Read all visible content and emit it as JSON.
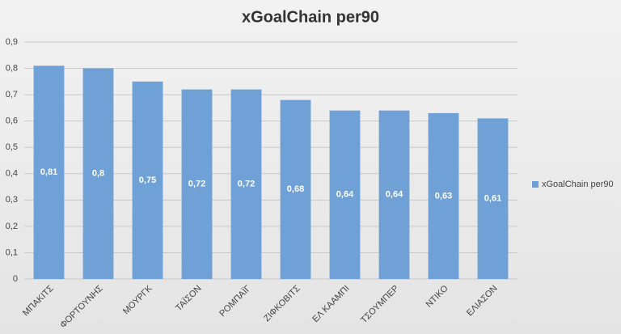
{
  "chart_data": {
    "type": "bar",
    "title": "xGoalChain per90",
    "categories": [
      "ΜΠΑΚΙΤΣ",
      "ΦΟΡΤΟΥΝΗΣ",
      "ΜΟΥΡΓΚ",
      "ΤΑΪΣΟΝ",
      "ΡΟΜΠΑΪΓ",
      "ΖΙΦΚΟΒΙΤΣ",
      "ΕΛ ΚΑΑΜΠΙ",
      "ΤΣΟΥΜΠΕΡ",
      "ΝΤΙΚΟ",
      "ΕΛΙΑΣΟΝ"
    ],
    "series": [
      {
        "name": "xGoalChain per90",
        "color": "#6fa0d6",
        "values": [
          0.81,
          0.8,
          0.75,
          0.72,
          0.72,
          0.68,
          0.64,
          0.64,
          0.63,
          0.61
        ],
        "value_labels": [
          "0,81",
          "0,8",
          "0,75",
          "0,72",
          "0,72",
          "0,68",
          "0,64",
          "0,64",
          "0,63",
          "0,61"
        ]
      }
    ],
    "ylim": [
      0,
      0.9
    ],
    "yticks": [
      0,
      {
        "value": 0.1,
        "label": "0,1"
      },
      {
        "value": 0.2,
        "label": "0,2"
      },
      {
        "value": 0.3,
        "label": "0,3"
      },
      {
        "value": 0.4,
        "label": "0,4"
      },
      {
        "value": 0.5,
        "label": "0,5"
      },
      {
        "value": 0.6,
        "label": "0,6"
      },
      {
        "value": 0.7,
        "label": "0,7"
      },
      {
        "value": 0.8,
        "label": "0,8"
      },
      {
        "value": 0.9,
        "label": "0,9"
      }
    ],
    "grid": true,
    "legend": "right"
  }
}
